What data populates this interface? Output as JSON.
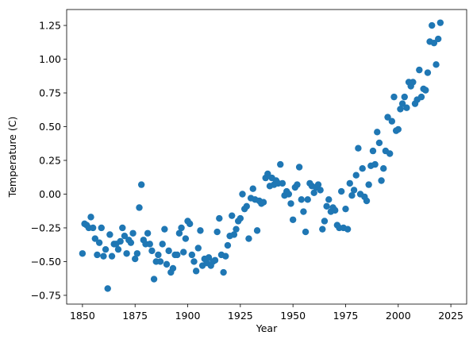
{
  "chart_data": {
    "type": "scatter",
    "x_label": "Year",
    "y_label": "Temperature (C)",
    "color": "#1f77b4",
    "xlim": [
      1842.5,
      2032.5
    ],
    "ylim": [
      -0.815,
      1.368
    ],
    "xticks": [
      1850,
      1875,
      1900,
      1925,
      1950,
      1975,
      2000,
      2025
    ],
    "yticks": [
      {
        "value": -0.75,
        "label": "−0.75"
      },
      {
        "value": -0.5,
        "label": "−0.50"
      },
      {
        "value": -0.25,
        "label": "−0.25"
      },
      {
        "value": 0,
        "label": "0.00"
      },
      {
        "value": 0.25,
        "label": "0.25"
      },
      {
        "value": 0.5,
        "label": "0.50"
      },
      {
        "value": 0.75,
        "label": "0.75"
      },
      {
        "value": 1,
        "label": "1.00"
      },
      {
        "value": 1.25,
        "label": "1.25"
      }
    ],
    "x": [
      1850,
      1851,
      1852,
      1853,
      1854,
      1855,
      1856,
      1857,
      1858,
      1859,
      1860,
      1861,
      1862,
      1863,
      1864,
      1865,
      1866,
      1867,
      1868,
      1869,
      1870,
      1871,
      1872,
      1873,
      1874,
      1875,
      1876,
      1877,
      1878,
      1879,
      1880,
      1881,
      1882,
      1883,
      1884,
      1885,
      1886,
      1887,
      1888,
      1889,
      1890,
      1891,
      1892,
      1893,
      1894,
      1895,
      1896,
      1897,
      1898,
      1899,
      1900,
      1901,
      1902,
      1903,
      1904,
      1905,
      1906,
      1907,
      1908,
      1909,
      1910,
      1911,
      1912,
      1913,
      1914,
      1915,
      1916,
      1917,
      1918,
      1919,
      1920,
      1921,
      1922,
      1923,
      1924,
      1925,
      1926,
      1927,
      1928,
      1929,
      1930,
      1931,
      1932,
      1933,
      1934,
      1935,
      1936,
      1937,
      1938,
      1939,
      1940,
      1941,
      1942,
      1943,
      1944,
      1945,
      1946,
      1947,
      1948,
      1949,
      1950,
      1951,
      1952,
      1953,
      1954,
      1955,
      1956,
      1957,
      1958,
      1959,
      1960,
      1961,
      1962,
      1963,
      1964,
      1965,
      1966,
      1967,
      1968,
      1969,
      1970,
      1971,
      1972,
      1973,
      1974,
      1975,
      1976,
      1977,
      1978,
      1979,
      1980,
      1981,
      1982,
      1983,
      1984,
      1985,
      1986,
      1987,
      1988,
      1989,
      1990,
      1991,
      1992,
      1993,
      1994,
      1995,
      1996,
      1997,
      1998,
      1999,
      2000,
      2001,
      2002,
      2003,
      2004,
      2005,
      2006,
      2007,
      2008,
      2009,
      2010,
      2011,
      2012,
      2013,
      2014,
      2015,
      2016,
      2017,
      2018,
      2019,
      2020
    ],
    "values": [
      -0.44,
      -0.22,
      -0.23,
      -0.25,
      -0.17,
      -0.25,
      -0.33,
      -0.45,
      -0.36,
      -0.25,
      -0.46,
      -0.41,
      -0.7,
      -0.3,
      -0.46,
      -0.37,
      -0.37,
      -0.41,
      -0.35,
      -0.25,
      -0.31,
      -0.44,
      -0.34,
      -0.36,
      -0.29,
      -0.48,
      -0.44,
      -0.1,
      0.07,
      -0.34,
      -0.37,
      -0.29,
      -0.37,
      -0.42,
      -0.63,
      -0.5,
      -0.45,
      -0.5,
      -0.37,
      -0.26,
      -0.52,
      -0.42,
      -0.58,
      -0.55,
      -0.45,
      -0.45,
      -0.29,
      -0.25,
      -0.43,
      -0.33,
      -0.2,
      -0.22,
      -0.45,
      -0.5,
      -0.57,
      -0.4,
      -0.27,
      -0.53,
      -0.48,
      -0.51,
      -0.47,
      -0.53,
      -0.5,
      -0.49,
      -0.28,
      -0.18,
      -0.45,
      -0.58,
      -0.46,
      -0.38,
      -0.31,
      -0.16,
      -0.3,
      -0.26,
      -0.2,
      -0.18,
      0.0,
      -0.11,
      -0.09,
      -0.33,
      -0.03,
      0.04,
      -0.04,
      -0.27,
      -0.05,
      -0.07,
      -0.06,
      0.12,
      0.15,
      0.06,
      0.12,
      0.07,
      0.1,
      0.08,
      0.22,
      0.08,
      -0.01,
      0.02,
      0.0,
      -0.07,
      -0.19,
      0.05,
      0.07,
      0.2,
      -0.04,
      -0.13,
      -0.28,
      -0.04,
      0.08,
      0.06,
      0.01,
      0.05,
      0.07,
      0.03,
      -0.26,
      -0.2,
      -0.09,
      -0.04,
      -0.13,
      -0.1,
      -0.12,
      -0.23,
      -0.25,
      0.02,
      -0.25,
      -0.11,
      -0.26,
      0.08,
      -0.01,
      0.03,
      0.14,
      0.34,
      0.0,
      0.19,
      -0.02,
      -0.05,
      0.07,
      0.21,
      0.32,
      0.22,
      0.46,
      0.38,
      0.1,
      0.19,
      0.32,
      0.57,
      0.3,
      0.54,
      0.72,
      0.47,
      0.48,
      0.63,
      0.67,
      0.72,
      0.64,
      0.83,
      0.8,
      0.83,
      0.67,
      0.7,
      0.92,
      0.72,
      0.78,
      0.77,
      0.9,
      1.13,
      1.25,
      1.12,
      0.96,
      1.15,
      1.27
    ]
  }
}
